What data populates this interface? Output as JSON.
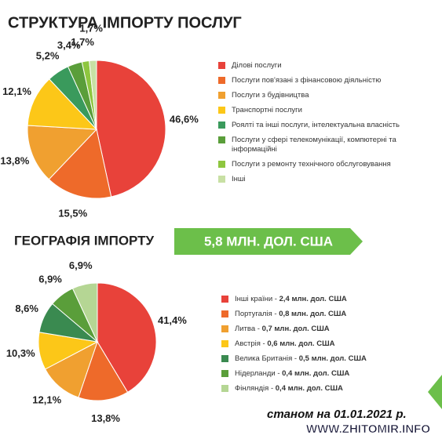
{
  "chart_data": [
    {
      "type": "pie",
      "title": "СТРУКТУРА ІМПОРТУ ПОСЛУГ",
      "categories": [
        "Ділові послуги",
        "Послуги пов'язані з фінансовою діяльністю",
        "Послуги з будівництва",
        "Транспортні послуги",
        "Роялті та інші послуги, інтелектуальна власність",
        "Послуги у сфері телекомунікації, компютерні та інформаційні",
        "Послуги з ремонту технічного обслуговування",
        "Інші"
      ],
      "values": [
        46.6,
        15.5,
        13.8,
        12.1,
        5.2,
        3.4,
        1.7,
        1.7
      ],
      "value_labels": [
        "46,6%",
        "15,5%",
        "13,8%",
        "12,1%",
        "5,2%",
        "3,4%",
        "1,7%",
        "1,7%"
      ],
      "colors": [
        "#e8423a",
        "#ee6a2a",
        "#f0a030",
        "#fcc718",
        "#3a9a5c",
        "#5a9e3a",
        "#8ec63f",
        "#c8e0a4"
      ]
    },
    {
      "type": "pie",
      "title": "ГЕОГРАФІЯ ІМПОРТУ",
      "categories": [
        "Інші країни -",
        "Португалія -",
        "Литва -",
        "Австрія -",
        "Велика Британія -",
        "Нідерланди -",
        "Фінляндія -"
      ],
      "legend_notes": [
        "2,4 млн. дол. США",
        "0,8 млн. дол. США",
        "0,7 млн. дол. США",
        "0,6 млн. дол. США",
        "0,5 млн. дол. США",
        "0,4 млн. дол. США",
        "0,4 млн. дол. США"
      ],
      "values": [
        41.4,
        13.8,
        12.1,
        10.3,
        8.6,
        6.9,
        6.9
      ],
      "value_labels": [
        "41,4%",
        "13,8%",
        "12,1%",
        "10,3%",
        "8,6%",
        "6,9%",
        "6,9%"
      ],
      "colors": [
        "#e8423a",
        "#ee6a2a",
        "#f0a030",
        "#fcc718",
        "#3a8a50",
        "#5a9e3a",
        "#b5d694"
      ]
    }
  ],
  "banner": "5,8 МЛН. ДОЛ. США",
  "footnote": "станом на 01.01.2021 р.",
  "watermark": "WWW.ZHITOMIR.INFO"
}
